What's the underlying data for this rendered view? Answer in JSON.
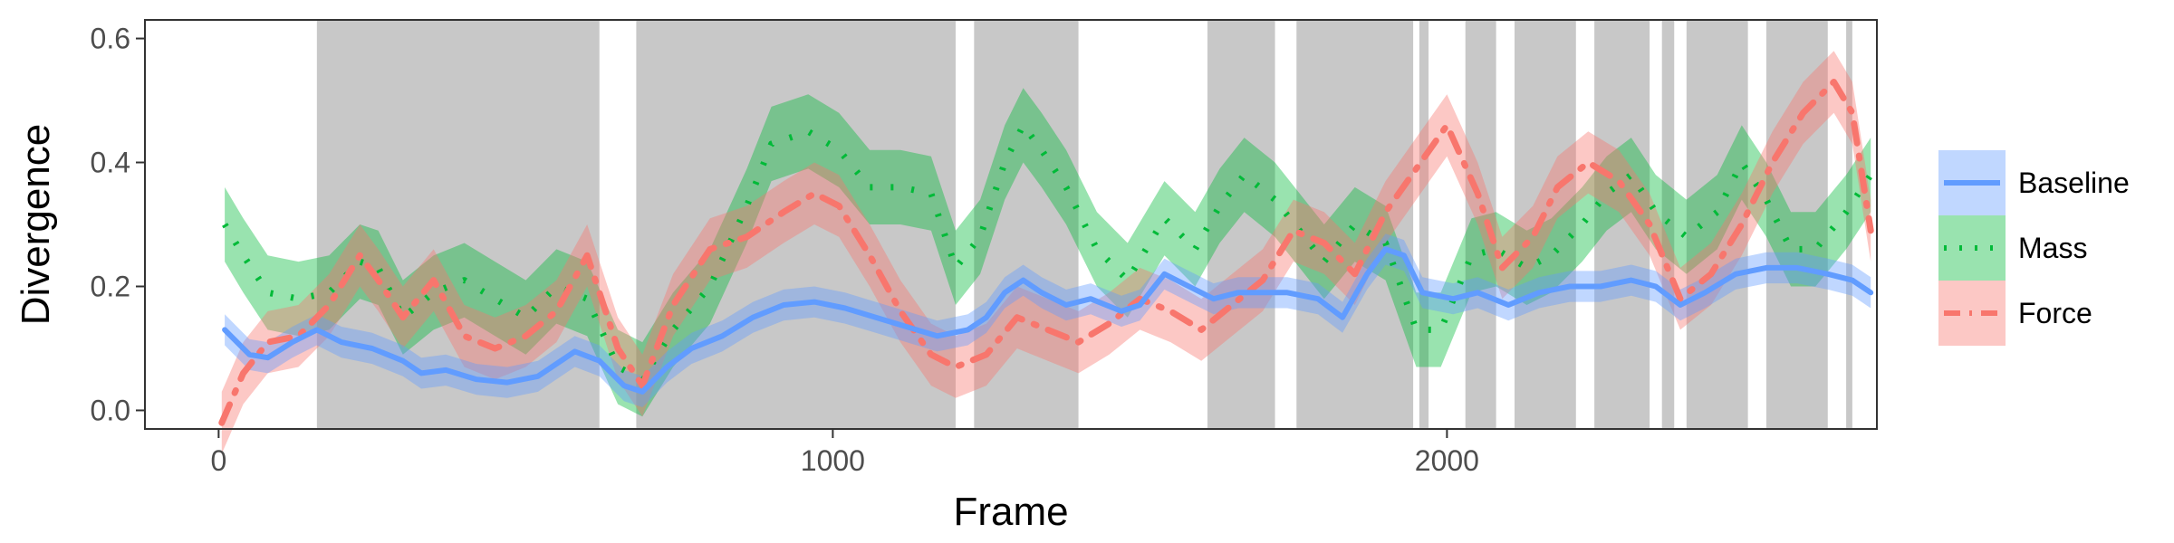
{
  "chart_data": {
    "type": "line",
    "title": "",
    "xlabel": "Frame",
    "ylabel": "Divergence",
    "xlim": [
      -120,
      2700
    ],
    "ylim": [
      -0.03,
      0.63
    ],
    "x_ticks": [
      0,
      1000,
      2000
    ],
    "y_ticks": [
      0.0,
      0.2,
      0.4,
      0.6
    ],
    "x_tick_labels": [
      "0",
      "1000",
      "2000"
    ],
    "y_tick_labels": [
      "0.0",
      "0.2",
      "0.4",
      "0.6"
    ],
    "grid": false,
    "legend": {
      "position": "right",
      "entries": [
        "Baseline",
        "Mass",
        "Force"
      ]
    },
    "shaded_regions": [
      [
        160,
        620
      ],
      [
        680,
        1200
      ],
      [
        1230,
        1400
      ],
      [
        1610,
        1720
      ],
      [
        1755,
        1945
      ],
      [
        1955,
        1970
      ],
      [
        2030,
        2080
      ],
      [
        2110,
        2210
      ],
      [
        2240,
        2330
      ],
      [
        2350,
        2370
      ],
      [
        2390,
        2490
      ],
      [
        2520,
        2620
      ],
      [
        2650,
        2660
      ]
    ],
    "series": [
      {
        "name": "Baseline",
        "color": "#619cff",
        "linestyle": "solid",
        "x": [
          10,
          50,
          80,
          120,
          160,
          200,
          250,
          300,
          330,
          370,
          420,
          470,
          520,
          580,
          620,
          660,
          690,
          730,
          770,
          820,
          870,
          920,
          970,
          1020,
          1070,
          1120,
          1170,
          1220,
          1250,
          1280,
          1310,
          1340,
          1380,
          1420,
          1470,
          1500,
          1540,
          1580,
          1620,
          1660,
          1700,
          1740,
          1790,
          1830,
          1870,
          1900,
          1930,
          1960,
          2010,
          2050,
          2100,
          2150,
          2200,
          2250,
          2300,
          2340,
          2380,
          2420,
          2470,
          2520,
          2570,
          2620,
          2660,
          2690
        ],
        "y": [
          0.13,
          0.09,
          0.085,
          0.11,
          0.13,
          0.11,
          0.1,
          0.08,
          0.06,
          0.065,
          0.05,
          0.045,
          0.055,
          0.095,
          0.08,
          0.04,
          0.03,
          0.07,
          0.1,
          0.12,
          0.15,
          0.17,
          0.175,
          0.165,
          0.15,
          0.135,
          0.12,
          0.13,
          0.15,
          0.19,
          0.21,
          0.19,
          0.17,
          0.18,
          0.16,
          0.17,
          0.22,
          0.2,
          0.18,
          0.19,
          0.19,
          0.19,
          0.18,
          0.15,
          0.22,
          0.26,
          0.25,
          0.19,
          0.18,
          0.19,
          0.17,
          0.19,
          0.2,
          0.2,
          0.21,
          0.2,
          0.17,
          0.19,
          0.22,
          0.23,
          0.23,
          0.22,
          0.21,
          0.19
        ],
        "ci_halfwidth": 0.025
      },
      {
        "name": "Mass",
        "color": "#00ba38",
        "linestyle": "dotted",
        "x": [
          10,
          40,
          80,
          130,
          180,
          230,
          260,
          300,
          350,
          400,
          450,
          500,
          550,
          600,
          650,
          690,
          740,
          800,
          860,
          900,
          960,
          1010,
          1060,
          1110,
          1160,
          1200,
          1240,
          1280,
          1310,
          1340,
          1380,
          1430,
          1480,
          1540,
          1590,
          1630,
          1670,
          1720,
          1760,
          1800,
          1850,
          1900,
          1950,
          1990,
          2040,
          2080,
          2130,
          2170,
          2220,
          2260,
          2300,
          2340,
          2390,
          2440,
          2480,
          2520,
          2560,
          2600,
          2650,
          2690
        ],
        "y": [
          0.3,
          0.25,
          0.19,
          0.18,
          0.19,
          0.24,
          0.23,
          0.15,
          0.19,
          0.21,
          0.18,
          0.15,
          0.2,
          0.18,
          0.07,
          0.05,
          0.13,
          0.2,
          0.33,
          0.43,
          0.45,
          0.42,
          0.36,
          0.36,
          0.35,
          0.23,
          0.28,
          0.4,
          0.46,
          0.42,
          0.36,
          0.26,
          0.21,
          0.31,
          0.26,
          0.33,
          0.38,
          0.34,
          0.29,
          0.24,
          0.3,
          0.27,
          0.13,
          0.13,
          0.25,
          0.26,
          0.23,
          0.25,
          0.3,
          0.35,
          0.38,
          0.32,
          0.28,
          0.32,
          0.4,
          0.34,
          0.26,
          0.26,
          0.32,
          0.38
        ],
        "ci_halfwidth": 0.06
      },
      {
        "name": "Force",
        "color": "#f8766d",
        "linestyle": "dashdot",
        "x": [
          5,
          40,
          80,
          130,
          180,
          230,
          260,
          300,
          350,
          400,
          450,
          500,
          550,
          600,
          650,
          690,
          740,
          800,
          860,
          920,
          970,
          1010,
          1060,
          1110,
          1160,
          1200,
          1250,
          1300,
          1350,
          1400,
          1450,
          1500,
          1550,
          1600,
          1650,
          1700,
          1750,
          1800,
          1850,
          1900,
          1950,
          2000,
          2050,
          2090,
          2140,
          2180,
          2230,
          2280,
          2330,
          2380,
          2430,
          2480,
          2530,
          2580,
          2630,
          2660,
          2690
        ],
        "y": [
          -0.02,
          0.06,
          0.11,
          0.12,
          0.17,
          0.25,
          0.21,
          0.15,
          0.21,
          0.12,
          0.1,
          0.12,
          0.16,
          0.25,
          0.1,
          0.04,
          0.17,
          0.26,
          0.28,
          0.32,
          0.35,
          0.33,
          0.25,
          0.16,
          0.09,
          0.07,
          0.09,
          0.15,
          0.13,
          0.11,
          0.14,
          0.18,
          0.16,
          0.13,
          0.17,
          0.21,
          0.29,
          0.27,
          0.22,
          0.32,
          0.39,
          0.46,
          0.35,
          0.23,
          0.28,
          0.36,
          0.4,
          0.37,
          0.3,
          0.18,
          0.22,
          0.3,
          0.4,
          0.48,
          0.53,
          0.48,
          0.29
        ],
        "ci_halfwidth": 0.05
      }
    ]
  }
}
